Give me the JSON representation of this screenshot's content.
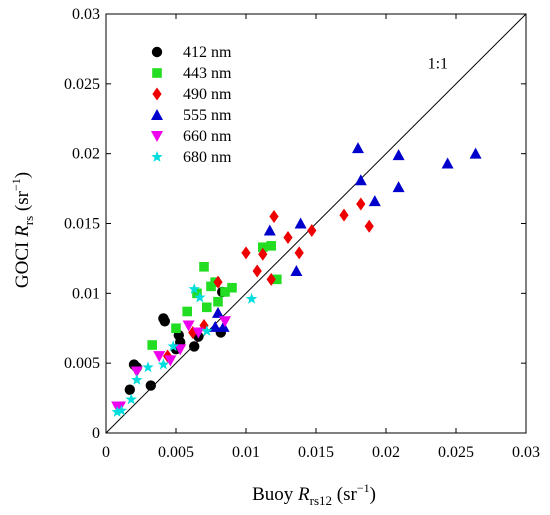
{
  "chart_data": {
    "type": "scatter",
    "title": "",
    "xlabel": {
      "pre": "Buoy ",
      "var": "R",
      "sub": "rs12",
      "unit_pre": " (sr",
      "unit_sup": "−1",
      "unit_post": ")"
    },
    "ylabel": {
      "pre": "GOCI ",
      "var": "R",
      "sub": "rs",
      "unit_pre": " (sr",
      "unit_sup": "−1",
      "unit_post": ")"
    },
    "xlim": [
      0,
      0.03
    ],
    "ylim": [
      0,
      0.03
    ],
    "xticks": [
      0,
      0.005,
      0.01,
      0.015,
      0.02,
      0.025,
      0.03
    ],
    "yticks": [
      0,
      0.005,
      0.01,
      0.015,
      0.02,
      0.025,
      0.03
    ],
    "xtick_labels": [
      "0",
      "0.005",
      "0.01",
      "0.015",
      "0.02",
      "0.025",
      "0.03"
    ],
    "ytick_labels": [
      "0",
      "0.005",
      "0.01",
      "0.015",
      "0.02",
      "0.025",
      "0.03"
    ],
    "grid": false,
    "legend_position": "top-left",
    "reference_line": {
      "label": "1:1",
      "from": [
        0,
        0
      ],
      "to": [
        0.03,
        0.03
      ],
      "label_at": [
        0.0237,
        0.0261
      ]
    },
    "series": [
      {
        "name": "412 nm",
        "marker": "circle",
        "color": "#000000",
        "points": [
          [
            0.0017,
            0.0031
          ],
          [
            0.002,
            0.0049
          ],
          [
            0.0022,
            0.0047
          ],
          [
            0.0032,
            0.0034
          ],
          [
            0.0041,
            0.0082
          ],
          [
            0.0042,
            0.008
          ],
          [
            0.005,
            0.006
          ],
          [
            0.0052,
            0.007
          ],
          [
            0.0053,
            0.0065
          ],
          [
            0.0063,
            0.0062
          ],
          [
            0.0066,
            0.0069
          ],
          [
            0.0082,
            0.0072
          ],
          [
            0.0083,
            0.0101
          ]
        ]
      },
      {
        "name": "443 nm",
        "marker": "square",
        "color": "#22dd22",
        "points": [
          [
            0.0033,
            0.0063
          ],
          [
            0.005,
            0.0075
          ],
          [
            0.0058,
            0.0087
          ],
          [
            0.0065,
            0.01
          ],
          [
            0.007,
            0.0119
          ],
          [
            0.0072,
            0.009
          ],
          [
            0.0075,
            0.0105
          ],
          [
            0.0078,
            0.0108
          ],
          [
            0.008,
            0.0094
          ],
          [
            0.0085,
            0.0101
          ],
          [
            0.009,
            0.0104
          ],
          [
            0.0112,
            0.0133
          ],
          [
            0.0118,
            0.0134
          ],
          [
            0.0122,
            0.011
          ]
        ]
      },
      {
        "name": "490 nm",
        "marker": "diamond",
        "color": "#ee0000",
        "points": [
          [
            0.0044,
            0.0055
          ],
          [
            0.0062,
            0.0072
          ],
          [
            0.007,
            0.0077
          ],
          [
            0.008,
            0.0108
          ],
          [
            0.01,
            0.0129
          ],
          [
            0.0108,
            0.0116
          ],
          [
            0.0112,
            0.0128
          ],
          [
            0.0118,
            0.011
          ],
          [
            0.012,
            0.0155
          ],
          [
            0.013,
            0.014
          ],
          [
            0.0138,
            0.0129
          ],
          [
            0.0147,
            0.0145
          ],
          [
            0.017,
            0.0156
          ],
          [
            0.0182,
            0.0164
          ],
          [
            0.0188,
            0.0148
          ]
        ]
      },
      {
        "name": "555 nm",
        "marker": "triangle-up",
        "color": "#0000cc",
        "points": [
          [
            0.0078,
            0.0076
          ],
          [
            0.008,
            0.0086
          ],
          [
            0.0084,
            0.0076
          ],
          [
            0.0117,
            0.0145
          ],
          [
            0.0136,
            0.0116
          ],
          [
            0.0139,
            0.015
          ],
          [
            0.018,
            0.0204
          ],
          [
            0.0182,
            0.0181
          ],
          [
            0.0192,
            0.0166
          ],
          [
            0.0209,
            0.0199
          ],
          [
            0.0209,
            0.0176
          ],
          [
            0.0244,
            0.0193
          ],
          [
            0.0264,
            0.02
          ]
        ]
      },
      {
        "name": "660 nm",
        "marker": "triangle-down",
        "color": "#ee00ee",
        "points": [
          [
            0.0008,
            0.0019
          ],
          [
            0.001,
            0.0019
          ],
          [
            0.0022,
            0.0044
          ],
          [
            0.0038,
            0.0055
          ],
          [
            0.0046,
            0.0052
          ],
          [
            0.0053,
            0.006
          ],
          [
            0.0059,
            0.0077
          ],
          [
            0.0066,
            0.0072
          ],
          [
            0.0085,
            0.008
          ]
        ]
      },
      {
        "name": "680 nm",
        "marker": "star",
        "color": "#00dddd",
        "points": [
          [
            0.0008,
            0.0015
          ],
          [
            0.0011,
            0.0016
          ],
          [
            0.0018,
            0.0024
          ],
          [
            0.0022,
            0.0038
          ],
          [
            0.003,
            0.0047
          ],
          [
            0.0041,
            0.0049
          ],
          [
            0.0048,
            0.0062
          ],
          [
            0.0063,
            0.0103
          ],
          [
            0.0067,
            0.0097
          ],
          [
            0.0072,
            0.0073
          ],
          [
            0.0104,
            0.0096
          ]
        ]
      }
    ]
  }
}
